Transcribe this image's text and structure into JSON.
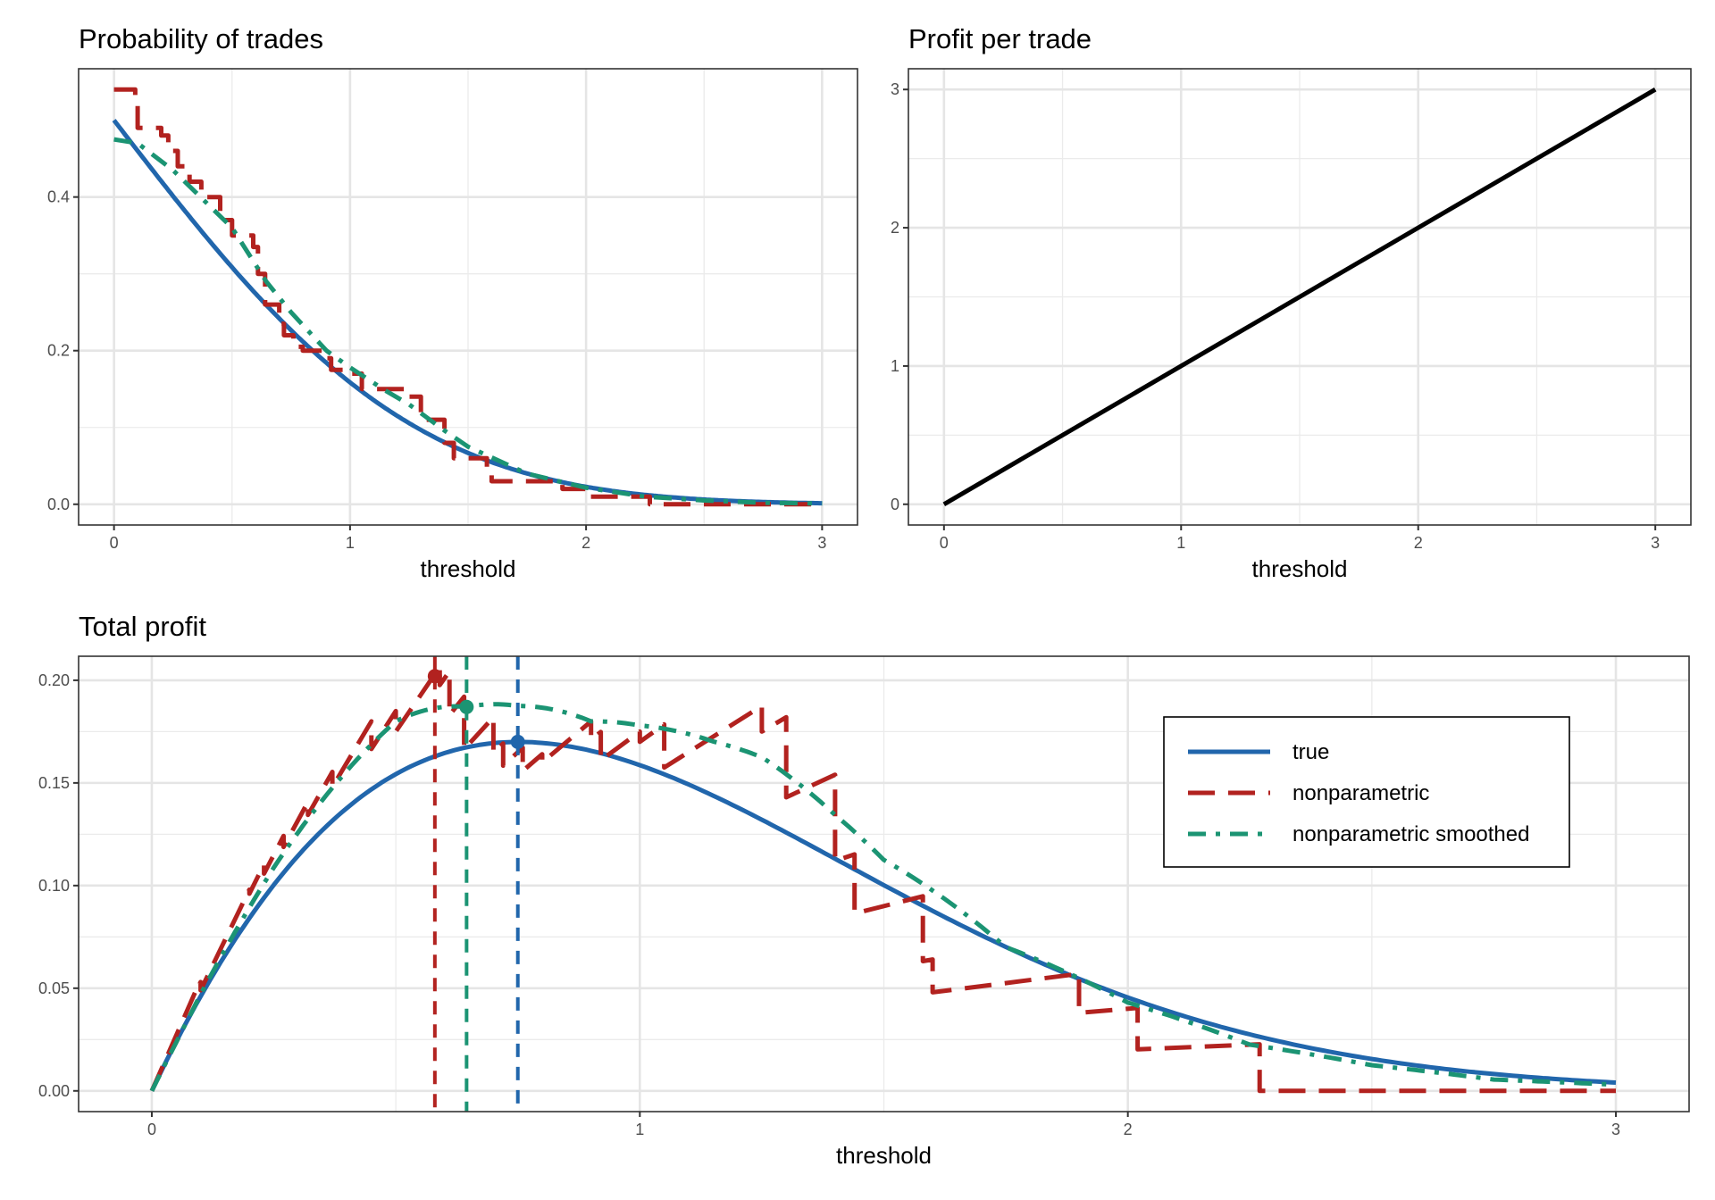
{
  "chart_data": [
    {
      "type": "line",
      "title": "Probability of trades",
      "xlabel": "threshold",
      "ylabel": "",
      "xlim": [
        -0.15,
        3.15
      ],
      "ylim": [
        -0.027,
        0.567
      ],
      "xticks": [
        0,
        1,
        2,
        3
      ],
      "xtick_labels": [
        "0",
        "1",
        "2",
        "3"
      ],
      "yticks": [
        0,
        0.2,
        0.4
      ],
      "ytick_labels": [
        "0.0",
        "0.2",
        "0.4"
      ],
      "grid": true,
      "series": [
        {
          "key": "true",
          "color": "#2166ac",
          "style": "solid",
          "kind": "normal-tail"
        },
        {
          "key": "nonparametric",
          "color": "#b2221f",
          "style": "longdash",
          "kind": "step",
          "x": [
            0,
            0.09,
            0.1,
            0.2,
            0.23,
            0.27,
            0.32,
            0.37,
            0.45,
            0.5,
            0.59,
            0.61,
            0.64,
            0.7,
            0.72,
            0.76,
            0.8,
            0.9,
            0.92,
            1.0,
            1.05,
            1.2,
            1.25,
            1.3,
            1.4,
            1.44,
            1.58,
            1.6,
            1.9,
            2.02,
            2.27,
            3.0
          ],
          "y": [
            0.54,
            0.53,
            0.49,
            0.48,
            0.46,
            0.44,
            0.42,
            0.4,
            0.37,
            0.35,
            0.335,
            0.3,
            0.26,
            0.235,
            0.22,
            0.205,
            0.2,
            0.19,
            0.175,
            0.17,
            0.15,
            0.15,
            0.14,
            0.11,
            0.08,
            0.06,
            0.04,
            0.03,
            0.02,
            0.01,
            0.0,
            0.0
          ]
        },
        {
          "key": "nonparametric smoothed",
          "color": "#1b9473",
          "style": "dotdash",
          "kind": "line",
          "x": [
            0,
            0.1,
            0.25,
            0.4,
            0.5,
            0.645,
            0.75,
            0.9,
            1.0,
            1.15,
            1.25,
            1.4,
            1.5,
            1.75,
            2.0,
            2.25,
            2.5,
            2.75,
            3.0
          ],
          "y": [
            0.475,
            0.47,
            0.435,
            0.39,
            0.36,
            0.29,
            0.25,
            0.2,
            0.178,
            0.148,
            0.13,
            0.096,
            0.075,
            0.04,
            0.0215,
            0.01,
            0.005,
            0.002,
            0.001
          ]
        }
      ]
    },
    {
      "type": "line",
      "title": "Profit per trade",
      "xlabel": "threshold",
      "ylabel": "",
      "xlim": [
        -0.15,
        3.15
      ],
      "ylim": [
        -0.15,
        3.15
      ],
      "xticks": [
        0,
        1,
        2,
        3
      ],
      "xtick_labels": [
        "0",
        "1",
        "2",
        "3"
      ],
      "yticks": [
        0,
        1,
        2,
        3
      ],
      "ytick_labels": [
        "0",
        "1",
        "2",
        "3"
      ],
      "grid": true,
      "series": [
        {
          "key": "profit",
          "color": "#000000",
          "style": "solid",
          "x": [
            0,
            3
          ],
          "y": [
            0,
            3
          ]
        }
      ]
    },
    {
      "type": "line",
      "title": "Total profit",
      "xlabel": "threshold",
      "ylabel": "",
      "xlim": [
        -0.15,
        3.15
      ],
      "ylim": [
        -0.0101,
        0.2117
      ],
      "xticks": [
        0,
        1,
        2,
        3
      ],
      "xtick_labels": [
        "0",
        "1",
        "2",
        "3"
      ],
      "yticks": [
        0,
        0.05,
        0.1,
        0.15,
        0.2
      ],
      "ytick_labels": [
        "0.00",
        "0.05",
        "0.10",
        "0.15",
        "0.20"
      ],
      "grid": true,
      "legend_position": "right",
      "legend": [
        {
          "name": "true",
          "color": "#2166ac",
          "style": "solid"
        },
        {
          "name": "nonparametric",
          "color": "#b2221f",
          "style": "longdash"
        },
        {
          "name": "nonparametric smoothed",
          "color": "#1b9473",
          "style": "dotdash"
        }
      ],
      "series_formula": "threshold x probability of trades",
      "optima": [
        {
          "key": "nonparametric",
          "color": "#b2221f",
          "x": 0.58,
          "y": 0.202
        },
        {
          "key": "nonparametric smoothed",
          "color": "#1b9473",
          "x": 0.645,
          "y": 0.187
        },
        {
          "key": "true",
          "color": "#2166ac",
          "x": 0.75,
          "y": 0.17
        }
      ]
    }
  ]
}
